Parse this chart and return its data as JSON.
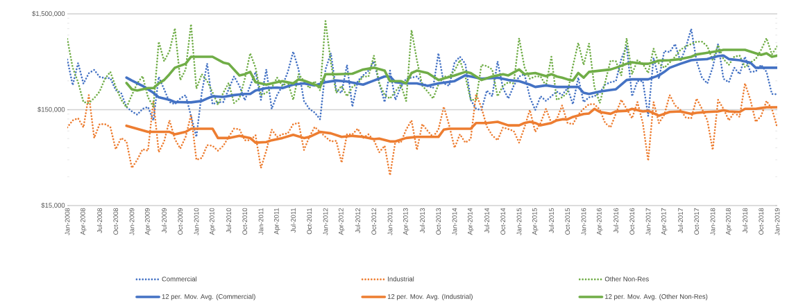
{
  "chart_data": {
    "type": "line",
    "log": "y",
    "grid": "y",
    "legend": "bottom",
    "ylim": [
      15000,
      1500000
    ],
    "yticks": [
      {
        "value": 15000,
        "label": "$15,000"
      },
      {
        "value": 150000,
        "label": "$150,000"
      },
      {
        "value": 1500000,
        "label": "$1,500,000"
      }
    ],
    "xlim": [
      "2008-01",
      "2019-01"
    ],
    "xticks": [
      {
        "value": "2008-01",
        "label": "Jan-2008"
      },
      {
        "value": "2008-04",
        "label": "Apr-2008"
      },
      {
        "value": "2008-07",
        "label": "Jul-2008"
      },
      {
        "value": "2008-10",
        "label": "Oct-2008"
      },
      {
        "value": "2009-01",
        "label": "Jan-2009"
      },
      {
        "value": "2009-04",
        "label": "Apr-2009"
      },
      {
        "value": "2009-07",
        "label": "Jul-2009"
      },
      {
        "value": "2009-10",
        "label": "Oct-2009"
      },
      {
        "value": "2010-01",
        "label": "Jan-2010"
      },
      {
        "value": "2010-04",
        "label": "Apr-2010"
      },
      {
        "value": "2010-07",
        "label": "Jul-2010"
      },
      {
        "value": "2010-10",
        "label": "Oct-2010"
      },
      {
        "value": "2011-01",
        "label": "Jan-2011"
      },
      {
        "value": "2011-04",
        "label": "Apr-2011"
      },
      {
        "value": "2011-07",
        "label": "Jul-2011"
      },
      {
        "value": "2011-10",
        "label": "Oct-2011"
      },
      {
        "value": "2012-01",
        "label": "Jan-2012"
      },
      {
        "value": "2012-04",
        "label": "Apr-2012"
      },
      {
        "value": "2012-07",
        "label": "Jul-2012"
      },
      {
        "value": "2012-10",
        "label": "Oct-2012"
      },
      {
        "value": "2013-01",
        "label": "Jan-2013"
      },
      {
        "value": "2013-04",
        "label": "Apr-2013"
      },
      {
        "value": "2013-07",
        "label": "Jul-2013"
      },
      {
        "value": "2013-10",
        "label": "Oct-2013"
      },
      {
        "value": "2014-01",
        "label": "Jan-2014"
      },
      {
        "value": "2014-04",
        "label": "Apr-2014"
      },
      {
        "value": "2014-07",
        "label": "Jul-2014"
      },
      {
        "value": "2014-10",
        "label": "Oct-2014"
      },
      {
        "value": "2015-01",
        "label": "Jan-2015"
      },
      {
        "value": "2015-04",
        "label": "Apr-2015"
      },
      {
        "value": "2015-07",
        "label": "Jul-2015"
      },
      {
        "value": "2015-10",
        "label": "Oct-2015"
      },
      {
        "value": "2016-01",
        "label": "Jan-2016"
      },
      {
        "value": "2016-04",
        "label": "Apr-2016"
      },
      {
        "value": "2016-07",
        "label": "Jul-2016"
      },
      {
        "value": "2016-10",
        "label": "Oct-2016"
      },
      {
        "value": "2017-01",
        "label": "Jan-2017"
      },
      {
        "value": "2017-04",
        "label": "Apr-2017"
      },
      {
        "value": "2017-07",
        "label": "Jul-2017"
      },
      {
        "value": "2017-10",
        "label": "Oct-2017"
      },
      {
        "value": "2018-01",
        "label": "Jan-2018"
      },
      {
        "value": "2018-04",
        "label": "Apr-2018"
      },
      {
        "value": "2018-07",
        "label": "Jul-2018"
      },
      {
        "value": "2018-10",
        "label": "Oct-2018"
      },
      {
        "value": "2019-01",
        "label": "Jan-2019"
      }
    ],
    "x": [
      "2008-01",
      "2008-02",
      "2008-03",
      "2008-04",
      "2008-05",
      "2008-06",
      "2008-07",
      "2008-08",
      "2008-09",
      "2008-10",
      "2008-11",
      "2008-12",
      "2009-01",
      "2009-02",
      "2009-03",
      "2009-04",
      "2009-05",
      "2009-06",
      "2009-07",
      "2009-08",
      "2009-09",
      "2009-10",
      "2009-11",
      "2009-12",
      "2010-01",
      "2010-02",
      "2010-03",
      "2010-04",
      "2010-05",
      "2010-06",
      "2010-07",
      "2010-08",
      "2010-09",
      "2010-10",
      "2010-11",
      "2010-12",
      "2011-01",
      "2011-02",
      "2011-03",
      "2011-04",
      "2011-05",
      "2011-06",
      "2011-07",
      "2011-08",
      "2011-09",
      "2011-10",
      "2011-11",
      "2011-12",
      "2012-01",
      "2012-02",
      "2012-03",
      "2012-04",
      "2012-05",
      "2012-06",
      "2012-07",
      "2012-08",
      "2012-09",
      "2012-10",
      "2012-11",
      "2012-12",
      "2013-01",
      "2013-02",
      "2013-03",
      "2013-04",
      "2013-05",
      "2013-06",
      "2013-07",
      "2013-08",
      "2013-09",
      "2013-10",
      "2013-11",
      "2013-12",
      "2014-01",
      "2014-02",
      "2014-03",
      "2014-04",
      "2014-05",
      "2014-06",
      "2014-07",
      "2014-08",
      "2014-09",
      "2014-10",
      "2014-11",
      "2014-12",
      "2015-01",
      "2015-02",
      "2015-03",
      "2015-04",
      "2015-05",
      "2015-06",
      "2015-07",
      "2015-08",
      "2015-09",
      "2015-10",
      "2015-11",
      "2015-12",
      "2016-01",
      "2016-02",
      "2016-03",
      "2016-04",
      "2016-05",
      "2016-06",
      "2016-07",
      "2016-08",
      "2016-09",
      "2016-10",
      "2016-11",
      "2016-12",
      "2017-01",
      "2017-02",
      "2017-03",
      "2017-04",
      "2017-05",
      "2017-06",
      "2017-07",
      "2017-08",
      "2017-09",
      "2017-10",
      "2017-11",
      "2017-12",
      "2018-01",
      "2018-02",
      "2018-03",
      "2018-04",
      "2018-05",
      "2018-06",
      "2018-07",
      "2018-08",
      "2018-09",
      "2018-10",
      "2018-11",
      "2018-12",
      "2019-01"
    ],
    "series": [
      {
        "name": "Commercial",
        "color": "#4472c4",
        "line_style": "dotted",
        "values": [
          500000,
          270000,
          460000,
          280000,
          360000,
          390000,
          330000,
          320000,
          320000,
          240000,
          225000,
          160000,
          144000,
          133000,
          153000,
          160000,
          116000,
          330000,
          245000,
          180000,
          171000,
          196000,
          213000,
          129000,
          78000,
          225000,
          455000,
          171000,
          180000,
          180000,
          245000,
          333000,
          266000,
          188000,
          266000,
          372000,
          190000,
          394000,
          153000,
          213000,
          266000,
          372000,
          605000,
          394000,
          185000,
          153000,
          140000,
          119000,
          394000,
          582000,
          238000,
          225000,
          440000,
          161000,
          298000,
          342000,
          383000,
          479000,
          282000,
          180000,
          383000,
          190000,
          259000,
          315000,
          324000,
          333000,
          282000,
          266000,
          252000,
          582000,
          282000,
          266000,
          465000,
          535000,
          452000,
          190000,
          153000,
          149000,
          238000,
          207000,
          479000,
          252000,
          196000,
          266000,
          333000,
          352000,
          202000,
          149000,
          207000,
          185000,
          207000,
          232000,
          213000,
          252000,
          171000,
          324000,
          180000,
          202000,
          207000,
          225000,
          274000,
          290000,
          298000,
          506000,
          694000,
          207000,
          298000,
          298000,
          129000,
          520000,
          315000,
          614000,
          598000,
          726000,
          479000,
          668000,
          1044000,
          479000,
          324000,
          282000,
          416000,
          726000,
          315000,
          290000,
          411000,
          352000,
          535000,
          372000,
          376000,
          440000,
          372000,
          219000,
          217000
        ]
      },
      {
        "name": "Industrial",
        "color": "#ed7d31",
        "line_style": "dotted",
        "values": [
          98000,
          116000,
          122000,
          98000,
          213000,
          76000,
          106000,
          106000,
          99000,
          58000,
          76000,
          70000,
          37000,
          45000,
          58000,
          56000,
          185000,
          54000,
          70000,
          116000,
          74000,
          59000,
          78000,
          133000,
          45000,
          47000,
          64000,
          63000,
          56000,
          63000,
          78000,
          95000,
          94000,
          72000,
          72000,
          81000,
          37000,
          56000,
          93000,
          78000,
          83000,
          85000,
          106000,
          109000,
          57000,
          78000,
          99000,
          88000,
          78000,
          70000,
          71000,
          42000,
          83000,
          83000,
          95000,
          76000,
          83000,
          72000,
          54000,
          63000,
          31000,
          70000,
          68000,
          93000,
          116000,
          57000,
          106000,
          90000,
          78000,
          93000,
          161000,
          103000,
          60000,
          83000,
          68000,
          74000,
          219000,
          157000,
          100000,
          81000,
          72000,
          98000,
          94000,
          90000,
          68000,
          98000,
          149000,
          88000,
          109000,
          153000,
          109000,
          119000,
          166000,
          109000,
          106000,
          133000,
          153000,
          171000,
          171000,
          150000,
          109000,
          98000,
          137000,
          190000,
          153000,
          122000,
          180000,
          109000,
          44000,
          180000,
          109000,
          133000,
          213000,
          166000,
          149000,
          124000,
          122000,
          196000,
          153000,
          116000,
          57000,
          190000,
          153000,
          116000,
          141000,
          126000,
          282000,
          190000,
          112000,
          129000,
          185000,
          153000,
          98000
        ]
      },
      {
        "name": "Other Non-Res",
        "color": "#70ad47",
        "line_style": "dotted",
        "values": [
          820000,
          412000,
          290000,
          180000,
          176000,
          198000,
          232000,
          315000,
          372000,
          259000,
          192000,
          158000,
          213000,
          282000,
          336000,
          202000,
          161000,
          768000,
          481000,
          614000,
          1060000,
          306000,
          394000,
          1170000,
          249000,
          352000,
          298000,
          228000,
          169000,
          225000,
          285000,
          176000,
          196000,
          315000,
          582000,
          411000,
          213000,
          225000,
          254000,
          324000,
          266000,
          290000,
          190000,
          352000,
          298000,
          252000,
          298000,
          238000,
          1260000,
          465000,
          225000,
          266000,
          207000,
          259000,
          282000,
          333000,
          333000,
          550000,
          282000,
          213000,
          196000,
          232000,
          274000,
          185000,
          1015000,
          492000,
          266000,
          232000,
          196000,
          274000,
          333000,
          333000,
          383000,
          492000,
          333000,
          190000,
          190000,
          440000,
          428000,
          394000,
          207000,
          266000,
          290000,
          282000,
          835000,
          416000,
          315000,
          333000,
          333000,
          266000,
          535000,
          190000,
          202000,
          225000,
          428000,
          747000,
          440000,
          734000,
          259000,
          176000,
          290000,
          487000,
          479000,
          342000,
          835000,
          352000,
          492000,
          452000,
          362000,
          650000,
          452000,
          411000,
          465000,
          535000,
          632000,
          687000,
          726000,
          768000,
          768000,
          687000,
          492000,
          706000,
          506000,
          440000,
          535000,
          550000,
          416000,
          465000,
          506000,
          632000,
          835000,
          566000,
          687000
        ]
      },
      {
        "name": "12 per. Mov. Avg. (Commercial)",
        "color": "#4472c4",
        "line_style": "solid",
        "x": [
          "2008-12",
          "2009-01",
          "2009-03",
          "2009-05",
          "2009-06",
          "2009-08",
          "2009-09",
          "2009-12",
          "2010-02",
          "2010-03",
          "2010-04",
          "2010-06",
          "2010-08",
          "2010-10",
          "2010-11",
          "2010-12",
          "2011-02",
          "2011-04",
          "2011-05",
          "2011-07",
          "2011-09",
          "2011-11",
          "2012-01",
          "2012-03",
          "2012-05",
          "2012-08",
          "2012-10",
          "2012-12",
          "2013-01",
          "2013-02",
          "2013-04",
          "2013-06",
          "2013-08",
          "2013-10",
          "2014-01",
          "2014-03",
          "2014-04",
          "2014-06",
          "2014-09",
          "2014-11",
          "2015-01",
          "2015-03",
          "2015-04",
          "2015-06",
          "2015-08",
          "2015-10",
          "2015-12",
          "2016-01",
          "2016-02",
          "2016-04",
          "2016-06",
          "2016-07",
          "2016-09",
          "2016-10",
          "2017-01",
          "2017-03",
          "2017-04",
          "2017-05",
          "2017-07",
          "2017-09",
          "2017-10",
          "2017-12",
          "2018-02",
          "2018-03",
          "2018-04",
          "2018-06",
          "2018-08",
          "2018-09",
          "2019-01"
        ],
        "values": [
          324000,
          302000,
          266000,
          225000,
          202000,
          190000,
          180000,
          179000,
          185000,
          196000,
          207000,
          204000,
          213000,
          219000,
          219000,
          238000,
          252000,
          255000,
          252000,
          274000,
          282000,
          269000,
          290000,
          302000,
          295000,
          274000,
          302000,
          333000,
          333000,
          290000,
          282000,
          282000,
          266000,
          282000,
          298000,
          342000,
          333000,
          315000,
          324000,
          306000,
          298000,
          274000,
          259000,
          269000,
          259000,
          259000,
          259000,
          225000,
          219000,
          232000,
          241000,
          245000,
          306000,
          311000,
          311000,
          342000,
          372000,
          411000,
          452000,
          492000,
          498000,
          506000,
          544000,
          550000,
          506000,
          492000,
          465000,
          411000,
          411000
        ]
      },
      {
        "name": "12 per. Mov. Avg. (Industrial)",
        "color": "#ed7d31",
        "line_style": "solid",
        "x": [
          "2008-12",
          "2009-04",
          "2009-06",
          "2009-08",
          "2009-09",
          "2009-11",
          "2009-12",
          "2010-04",
          "2010-05",
          "2010-07",
          "2010-09",
          "2010-11",
          "2010-12",
          "2011-02",
          "2011-03",
          "2011-05",
          "2011-07",
          "2011-09",
          "2011-10",
          "2011-12",
          "2012-02",
          "2012-04",
          "2012-06",
          "2012-08",
          "2012-10",
          "2012-11",
          "2013-01",
          "2013-02",
          "2013-04",
          "2013-06",
          "2013-08",
          "2013-10",
          "2013-11",
          "2013-12",
          "2014-04",
          "2014-05",
          "2014-07",
          "2014-09",
          "2014-11",
          "2015-01",
          "2015-02",
          "2015-03",
          "2015-04",
          "2015-05",
          "2015-07",
          "2015-08",
          "2015-09",
          "2015-10",
          "2015-11",
          "2016-01",
          "2016-02",
          "2016-03",
          "2016-04",
          "2016-06",
          "2016-07",
          "2016-09",
          "2016-10",
          "2016-12",
          "2017-01",
          "2017-03",
          "2017-05",
          "2017-07",
          "2017-09",
          "2017-10",
          "2017-12",
          "2018-02",
          "2018-03",
          "2018-04",
          "2018-06",
          "2018-07",
          "2018-09",
          "2018-10",
          "2018-11",
          "2019-01"
        ],
        "values": [
          102000,
          88000,
          88000,
          88000,
          83000,
          88000,
          95000,
          95000,
          76000,
          76000,
          80000,
          76000,
          68000,
          69000,
          72000,
          76000,
          82000,
          76000,
          78000,
          88000,
          85000,
          78000,
          80000,
          78000,
          74000,
          75000,
          70000,
          70000,
          76000,
          78000,
          78000,
          78000,
          93000,
          95000,
          95000,
          109000,
          109000,
          112000,
          103000,
          103000,
          109000,
          112000,
          109000,
          103000,
          109000,
          116000,
          119000,
          119000,
          126000,
          135000,
          137000,
          153000,
          142000,
          136000,
          144000,
          146000,
          153000,
          144000,
          146000,
          130000,
          142000,
          144000,
          136000,
          139000,
          142000,
          144000,
          148000,
          144000,
          142000,
          153000,
          153000,
          156000,
          159000,
          159000
        ]
      },
      {
        "name": "12 per. Mov. Avg. (Other Non-Res)",
        "color": "#70ad47",
        "line_style": "solid",
        "x": [
          "2008-12",
          "2009-01",
          "2009-02",
          "2009-04",
          "2009-05",
          "2009-06",
          "2009-07",
          "2009-08",
          "2009-09",
          "2009-11",
          "2009-12",
          "2010-04",
          "2010-06",
          "2010-07",
          "2010-09",
          "2010-10",
          "2010-11",
          "2010-12",
          "2011-02",
          "2011-04",
          "2011-05",
          "2011-07",
          "2011-08",
          "2011-09",
          "2011-11",
          "2011-12",
          "2012-01",
          "2012-03",
          "2012-06",
          "2012-08",
          "2012-10",
          "2012-12",
          "2013-01",
          "2013-03",
          "2013-04",
          "2013-05",
          "2013-06",
          "2013-08",
          "2013-10",
          "2014-01",
          "2014-03",
          "2014-04",
          "2014-06",
          "2014-08",
          "2014-10",
          "2014-11",
          "2015-01",
          "2015-02",
          "2015-04",
          "2015-05",
          "2015-06",
          "2015-07",
          "2015-08",
          "2015-09",
          "2015-10",
          "2015-11",
          "2015-12",
          "2016-01",
          "2016-02",
          "2016-04",
          "2016-06",
          "2016-07",
          "2016-09",
          "2016-10",
          "2016-12",
          "2017-01",
          "2017-03",
          "2017-05",
          "2017-07",
          "2017-09",
          "2017-10",
          "2017-12",
          "2018-02",
          "2018-03",
          "2018-07",
          "2018-09",
          "2018-10",
          "2018-11",
          "2018-12",
          "2019-01"
        ],
        "values": [
          285000,
          245000,
          238000,
          252000,
          252000,
          282000,
          306000,
          352000,
          411000,
          452000,
          535000,
          535000,
          465000,
          452000,
          342000,
          352000,
          372000,
          290000,
          274000,
          290000,
          298000,
          282000,
          311000,
          302000,
          274000,
          259000,
          352000,
          352000,
          356000,
          394000,
          411000,
          383000,
          298000,
          298000,
          282000,
          362000,
          383000,
          362000,
          306000,
          342000,
          372000,
          362000,
          306000,
          333000,
          352000,
          342000,
          394000,
          352000,
          362000,
          349000,
          336000,
          352000,
          333000,
          324000,
          311000,
          302000,
          362000,
          324000,
          372000,
          383000,
          394000,
          411000,
          452000,
          469000,
          452000,
          452000,
          487000,
          492000,
          506000,
          535000,
          566000,
          588000,
          614000,
          632000,
          632000,
          582000,
          560000,
          582000,
          535000,
          550000
        ]
      }
    ]
  }
}
